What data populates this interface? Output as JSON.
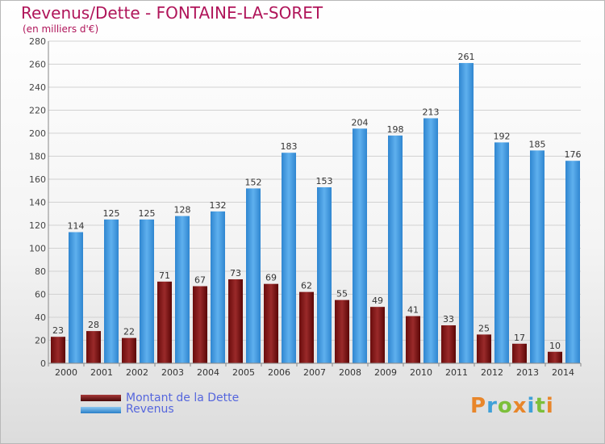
{
  "header": {
    "title": "Revenus/Dette - FONTAINE-LA-SORET",
    "subtitle": "(en milliers d'€)"
  },
  "legend": {
    "items": [
      {
        "label": "Montant de la Dette",
        "color": "#7a1414"
      },
      {
        "label": "Revenus",
        "color": "#4a9fe3"
      }
    ]
  },
  "logo": {
    "letters": [
      "P",
      "r",
      "o",
      "x",
      "i",
      "t",
      "i"
    ],
    "colors": [
      "#e8862a",
      "#3fa0d8",
      "#7cbf3b",
      "#e8862a",
      "#3fa0d8",
      "#7cbf3b",
      "#e8862a"
    ]
  },
  "chart_data": {
    "type": "bar",
    "title": "Revenus/Dette - FONTAINE-LA-SORET",
    "subtitle": "(en milliers d'€)",
    "categories": [
      "2000",
      "2001",
      "2002",
      "2003",
      "2004",
      "2005",
      "2006",
      "2007",
      "2008",
      "2009",
      "2010",
      "2011",
      "2012",
      "2013",
      "2014"
    ],
    "series": [
      {
        "name": "Montant de la Dette",
        "color": "#7a1414",
        "values": [
          23,
          28,
          22,
          71,
          67,
          73,
          69,
          62,
          55,
          49,
          41,
          33,
          25,
          17,
          10
        ]
      },
      {
        "name": "Revenus",
        "color": "#4a9fe3",
        "values": [
          114,
          125,
          125,
          128,
          132,
          152,
          183,
          153,
          204,
          198,
          213,
          261,
          192,
          185,
          176
        ]
      }
    ],
    "ylim": [
      0,
      280
    ],
    "yticks": [
      0,
      20,
      40,
      60,
      80,
      100,
      120,
      140,
      160,
      180,
      200,
      220,
      240,
      260,
      280
    ],
    "grid": true,
    "legend_position": "bottom-left"
  }
}
